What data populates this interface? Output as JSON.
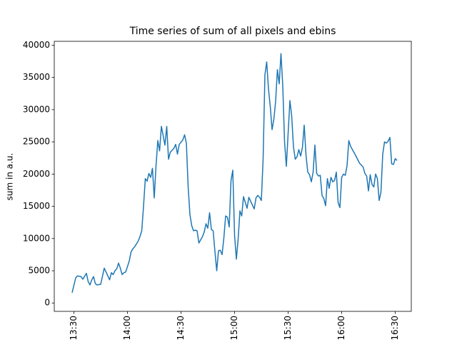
{
  "chart_data": {
    "type": "line",
    "title": "Time series of sum of all pixels and ebins",
    "ylabel": "sum in a.u.",
    "x": [
      "13:29",
      "13:31",
      "13:32",
      "13:34",
      "13:35",
      "13:37",
      "13:38",
      "13:39",
      "13:40",
      "13:41",
      "13:42",
      "13:43",
      "13:45",
      "13:47",
      "13:48",
      "13:50",
      "13:51",
      "13:52",
      "13:53",
      "13:54",
      "13:55",
      "13:56",
      "13:57",
      "13:58",
      "13:59",
      "14:01",
      "14:02",
      "14:03",
      "14:04",
      "14:06",
      "14:07",
      "14:08",
      "14:09",
      "14:10",
      "14:11",
      "14:12",
      "14:13",
      "14:14",
      "14:15",
      "14:16",
      "14:17",
      "14:18",
      "14:19",
      "14:21",
      "14:22",
      "14:23",
      "14:24",
      "14:26",
      "14:27",
      "14:28",
      "14:29",
      "14:31",
      "14:32",
      "14:33",
      "14:34",
      "14:35",
      "14:36",
      "14:37",
      "14:38",
      "14:39",
      "14:40",
      "14:42",
      "14:43",
      "14:44",
      "14:45",
      "14:46",
      "14:47",
      "14:48",
      "14:49",
      "14:50",
      "14:51",
      "14:52",
      "14:53",
      "14:54",
      "14:55",
      "14:56",
      "14:57",
      "14:58",
      "14:59",
      "15:00",
      "15:01",
      "15:02",
      "15:03",
      "15:04",
      "15:05",
      "15:06",
      "15:07",
      "15:08",
      "15:10",
      "15:11",
      "15:12",
      "15:13",
      "15:14",
      "15:15",
      "15:16",
      "15:17",
      "15:18",
      "15:19",
      "15:20",
      "15:21",
      "15:22",
      "15:23",
      "15:24",
      "15:25",
      "15:26",
      "15:27",
      "15:28",
      "15:29",
      "15:31",
      "15:32",
      "15:33",
      "15:34",
      "15:35",
      "15:36",
      "15:37",
      "15:38",
      "15:39",
      "15:40",
      "15:41",
      "15:42",
      "15:43",
      "15:44",
      "15:45",
      "15:46",
      "15:47",
      "15:48",
      "15:49",
      "15:50",
      "15:51",
      "15:52",
      "15:53",
      "15:54",
      "15:55",
      "15:56",
      "15:57",
      "15:58",
      "15:59",
      "16:00",
      "16:01",
      "16:02",
      "16:03",
      "16:04",
      "16:05",
      "16:06",
      "16:08",
      "16:10",
      "16:12",
      "16:13",
      "16:14",
      "16:15",
      "16:16",
      "16:17",
      "16:18",
      "16:19",
      "16:20",
      "16:21",
      "16:22",
      "16:23",
      "16:24",
      "16:25",
      "16:26",
      "16:27",
      "16:28",
      "16:29",
      "16:30",
      "16:31"
    ],
    "series": [
      {
        "color": "#1f77b4",
        "values": [
          1600,
          3900,
          4200,
          4100,
          3700,
          4600,
          3300,
          2800,
          3600,
          4100,
          3000,
          2800,
          2900,
          5400,
          4800,
          3600,
          4700,
          4400,
          5000,
          5300,
          6200,
          5400,
          4400,
          4700,
          4800,
          6500,
          7900,
          8400,
          8700,
          9600,
          10300,
          11200,
          15000,
          19300,
          18900,
          20100,
          19500,
          20900,
          16300,
          21300,
          25200,
          23600,
          27400,
          24500,
          27400,
          22300,
          23400,
          24000,
          24600,
          23100,
          24600,
          25300,
          26100,
          24800,
          18000,
          13700,
          12000,
          11200,
          11300,
          11200,
          9300,
          10300,
          11000,
          12300,
          11600,
          14000,
          11400,
          11200,
          8000,
          5000,
          8100,
          8200,
          7500,
          10100,
          13500,
          13300,
          11800,
          19000,
          20600,
          10500,
          6800,
          9900,
          14300,
          13500,
          16500,
          15600,
          14700,
          16400,
          15200,
          14600,
          16300,
          16700,
          16400,
          15900,
          22400,
          35400,
          37400,
          33200,
          30500,
          26900,
          28500,
          31300,
          36200,
          34000,
          38700,
          33700,
          25000,
          21200,
          31400,
          29000,
          24200,
          22300,
          22700,
          23800,
          22800,
          24100,
          27600,
          23000,
          20300,
          19900,
          18800,
          20300,
          24500,
          20100,
          19700,
          19800,
          16700,
          16200,
          15100,
          19300,
          17800,
          19500,
          18800,
          19000,
          20300,
          15600,
          14800,
          19500,
          20000,
          19800,
          21300,
          25200,
          24300,
          23800,
          22800,
          21700,
          21100,
          20100,
          19700,
          17400,
          19900,
          18400,
          18000,
          20000,
          19300,
          15900,
          17200,
          23100,
          25000,
          24800,
          25100,
          25700,
          21600,
          21500,
          22400,
          22100
        ]
      }
    ],
    "xlim": [
      "13:19",
      "16:39"
    ],
    "xticks": [
      "13:30",
      "14:00",
      "14:30",
      "15:00",
      "15:30",
      "16:00",
      "16:30"
    ],
    "ylim": [
      -1300,
      40600
    ],
    "yticks": [
      0,
      5000,
      10000,
      15000,
      20000,
      25000,
      30000,
      35000,
      40000
    ]
  }
}
